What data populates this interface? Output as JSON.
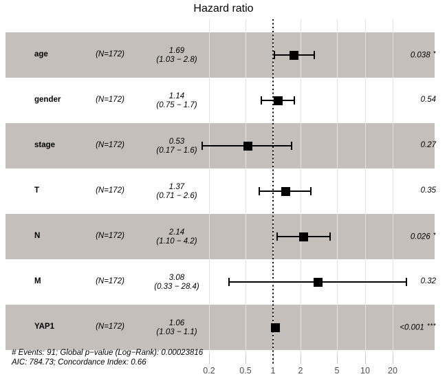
{
  "chart_data": {
    "type": "scatter",
    "subtype": "forest-plot",
    "title": "Hazard ratio",
    "x_axis": {
      "scale": "log10",
      "ticks": [
        0.2,
        0.5,
        1,
        2,
        5,
        10,
        20
      ],
      "labels": [
        "0.2",
        "0.5",
        "1",
        "2",
        "5",
        "10",
        "20"
      ],
      "reference_line": 1
    },
    "rows": [
      {
        "variable": "age",
        "group_label": "(N=172)",
        "hr": 1.69,
        "ci_low": 1.03,
        "ci_high": 2.8,
        "hr_label": "1.69",
        "ci_label": "(1.03 − 2.8)",
        "p_label": "0.038",
        "stars": "*",
        "shaded": true
      },
      {
        "variable": "gender",
        "group_label": "(N=172)",
        "hr": 1.14,
        "ci_low": 0.75,
        "ci_high": 1.7,
        "hr_label": "1.14",
        "ci_label": "(0.75 − 1.7)",
        "p_label": "0.54",
        "stars": "",
        "shaded": false
      },
      {
        "variable": "stage",
        "group_label": "(N=172)",
        "hr": 0.53,
        "ci_low": 0.17,
        "ci_high": 1.6,
        "hr_label": "0.53",
        "ci_label": "(0.17 − 1.6)",
        "p_label": "0.27",
        "stars": "",
        "shaded": true
      },
      {
        "variable": "T",
        "group_label": "(N=172)",
        "hr": 1.37,
        "ci_low": 0.71,
        "ci_high": 2.6,
        "hr_label": "1.37",
        "ci_label": "(0.71 − 2.6)",
        "p_label": "0.35",
        "stars": "",
        "shaded": false
      },
      {
        "variable": "N",
        "group_label": "(N=172)",
        "hr": 2.14,
        "ci_low": 1.1,
        "ci_high": 4.2,
        "hr_label": "2.14",
        "ci_label": "(1.10 − 4.2)",
        "p_label": "0.026",
        "stars": "*",
        "shaded": true
      },
      {
        "variable": "M",
        "group_label": "(N=172)",
        "hr": 3.08,
        "ci_low": 0.33,
        "ci_high": 28.4,
        "hr_label": "3.08",
        "ci_label": "(0.33 − 28.4)",
        "p_label": "0.32",
        "stars": "",
        "shaded": false
      },
      {
        "variable": "YAP1",
        "group_label": "(N=172)",
        "hr": 1.06,
        "ci_low": 1.03,
        "ci_high": 1.1,
        "hr_label": "1.06",
        "ci_label": "(1.03 − 1.1)",
        "p_label": "<0.001",
        "stars": "***",
        "shaded": true
      }
    ],
    "footnotes": [
      "# Events: 91; Global p−value (Log−Rank): 0.00023816",
      "AIC: 784.73; Concordance Index: 0.66"
    ],
    "colors": {
      "band": "#c5bfbb",
      "marker": "#000000",
      "grid": "#e4e1df",
      "axis_text": "#4d4d4d",
      "reference_line": "#000000"
    }
  }
}
